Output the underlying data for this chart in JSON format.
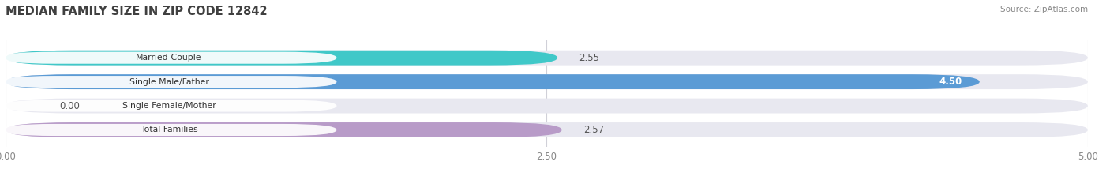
{
  "title": "MEDIAN FAMILY SIZE IN ZIP CODE 12842",
  "source": "Source: ZipAtlas.com",
  "categories": [
    "Married-Couple",
    "Single Male/Father",
    "Single Female/Mother",
    "Total Families"
  ],
  "values": [
    2.55,
    4.5,
    0.0,
    2.57
  ],
  "bar_colors": [
    "#40c8c8",
    "#5b9bd5",
    "#f4a0b0",
    "#b89bc8"
  ],
  "bar_bg_color": "#e8e8f0",
  "xlim": [
    0,
    5.0
  ],
  "xtick_labels": [
    "0.00",
    "2.50",
    "5.00"
  ],
  "xtick_vals": [
    0.0,
    2.5,
    5.0
  ],
  "value_label_color": "#555555",
  "label_color": "#333333",
  "title_color": "#404040",
  "source_color": "#888888",
  "bar_height": 0.62,
  "label_pill_color": "#ffffff"
}
